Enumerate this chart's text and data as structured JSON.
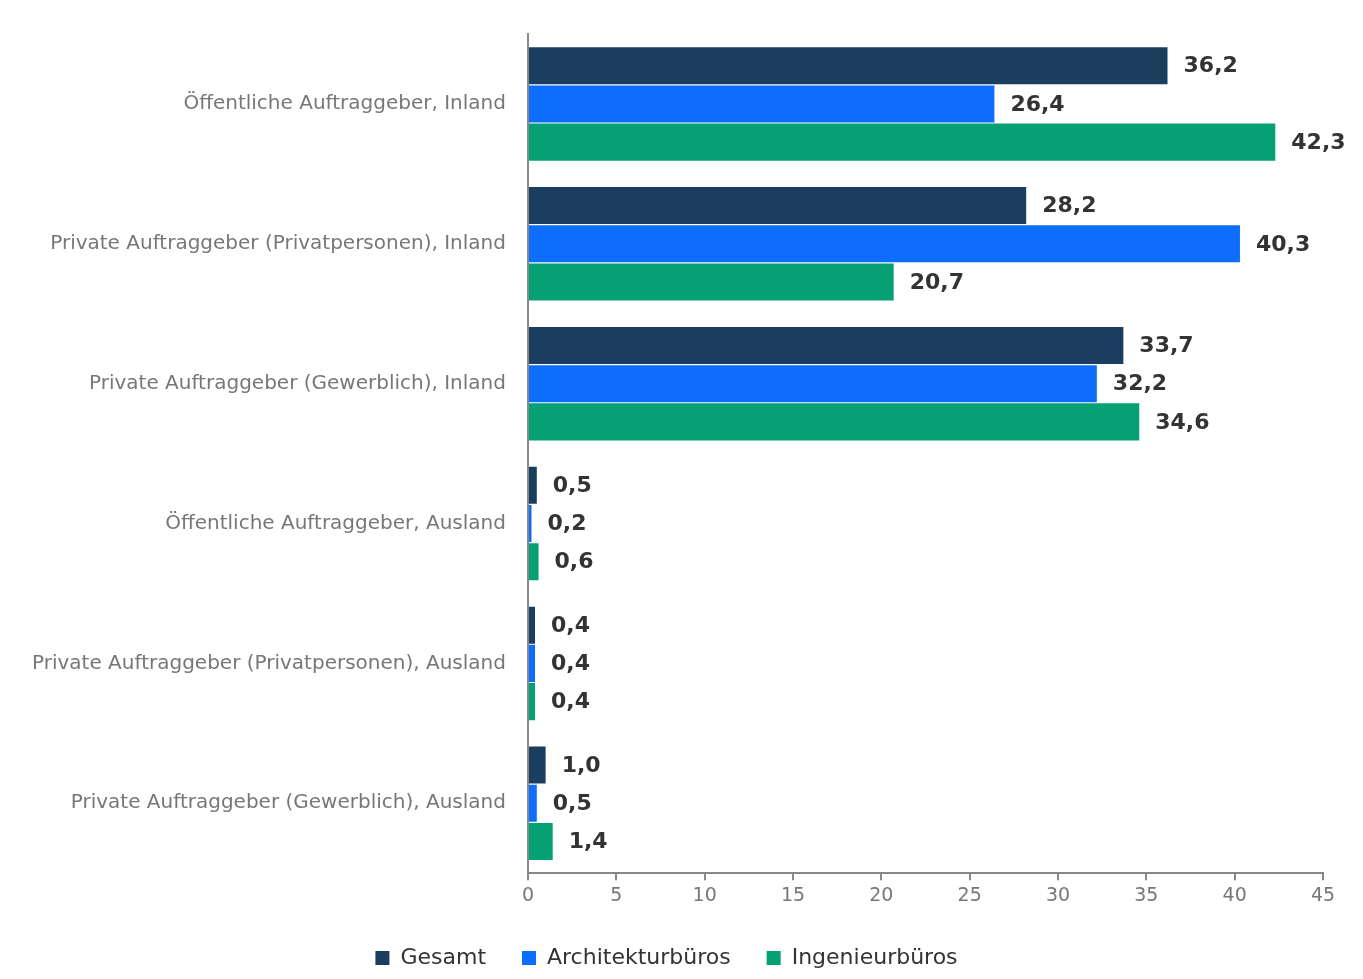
{
  "chart_data": {
    "type": "bar",
    "orientation": "horizontal",
    "categories": [
      "Öffentliche Auftraggeber, Inland",
      "Private Auftraggeber (Privatpersonen), Inland",
      "Private Auftraggeber (Gewerblich), Inland",
      "Öffentliche Auftraggeber, Ausland",
      "Private Auftraggeber (Privatpersonen), Ausland",
      "Private Auftraggeber (Gewerblich), Ausland"
    ],
    "series": [
      {
        "name": "Gesamt",
        "color": "#1b3d5e",
        "values": [
          36.2,
          28.2,
          33.7,
          0.5,
          0.4,
          1.0
        ],
        "value_labels": [
          "36,2",
          "28,2",
          "33,7",
          "0,5",
          "0,4",
          "1,0"
        ]
      },
      {
        "name": "Architekturbüros",
        "color": "#0d6efd",
        "values": [
          26.4,
          40.3,
          32.2,
          0.2,
          0.4,
          0.5
        ],
        "value_labels": [
          "26,4",
          "40,3",
          "32,2",
          "0,2",
          "0,4",
          "0,5"
        ]
      },
      {
        "name": "Ingenieurbüros",
        "color": "#05a074",
        "values": [
          42.3,
          20.7,
          34.6,
          0.6,
          0.4,
          1.4
        ],
        "value_labels": [
          "42,3",
          "20,7",
          "34,6",
          "0,6",
          "0,4",
          "1,4"
        ]
      }
    ],
    "xlim": [
      0,
      45
    ],
    "xticks": [
      0,
      5,
      10,
      15,
      20,
      25,
      30,
      35,
      40,
      45
    ],
    "grid": false,
    "legend": "bottom"
  }
}
